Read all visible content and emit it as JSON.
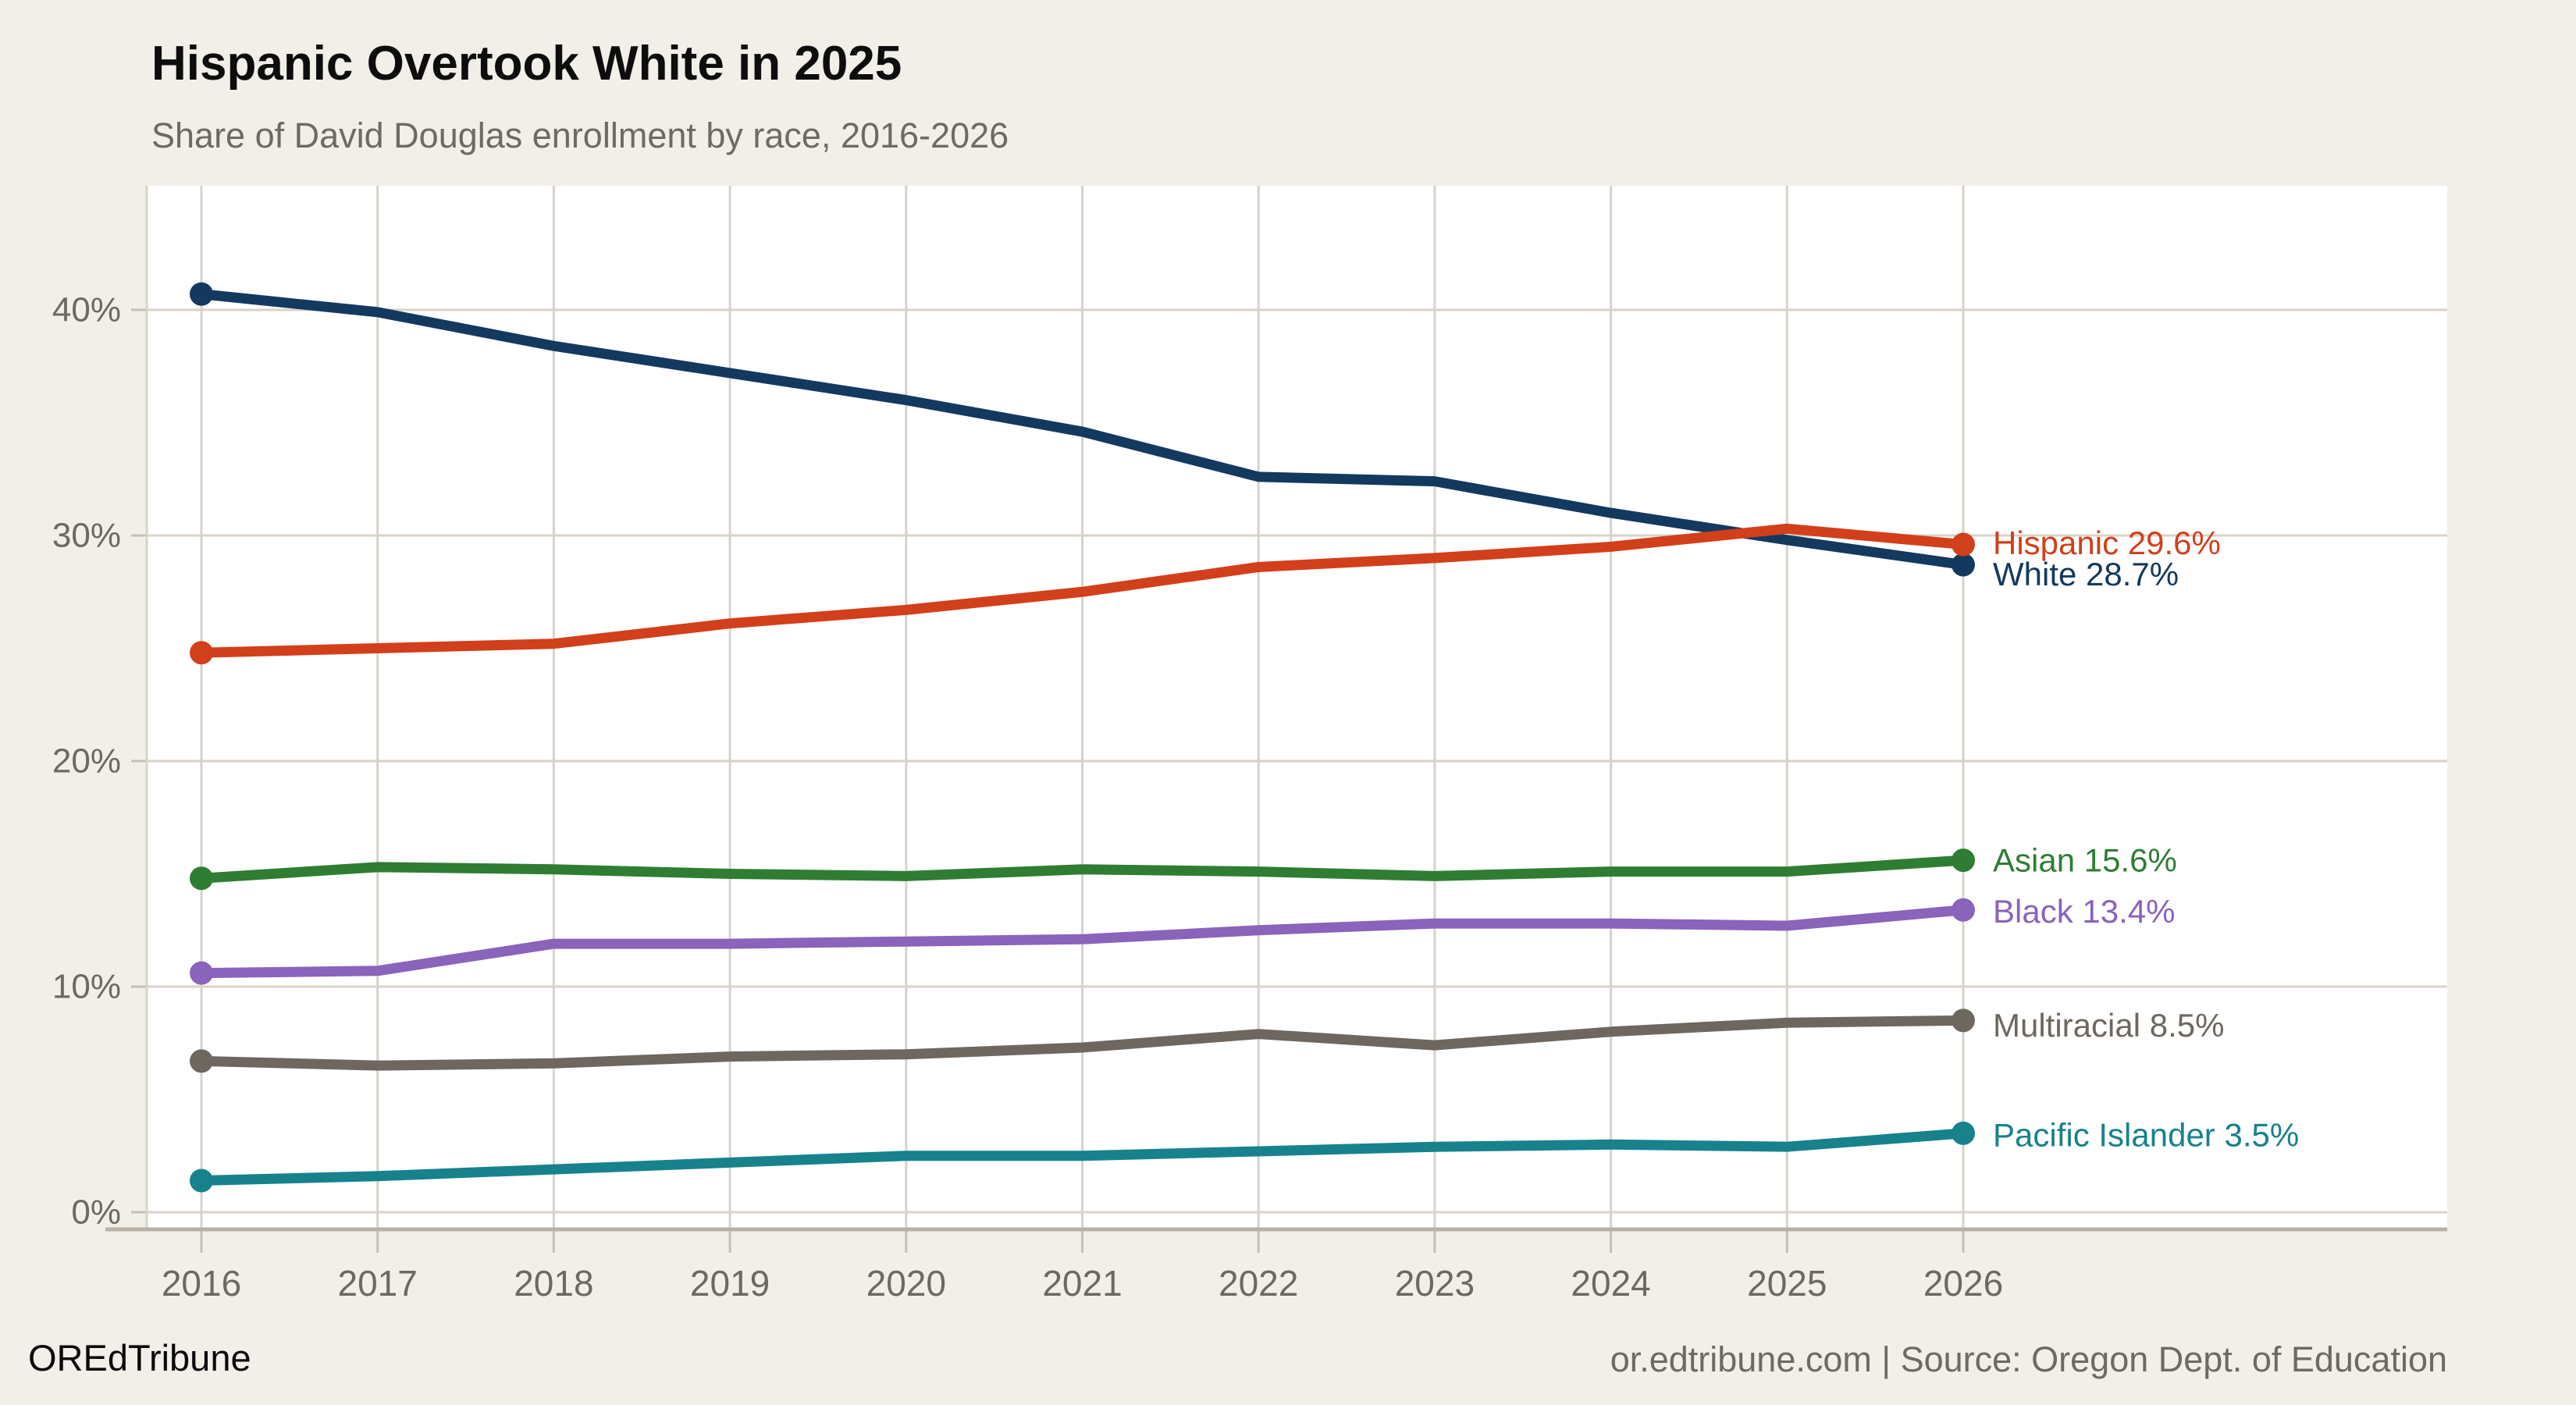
{
  "page": {
    "background": "#f2efe9",
    "plot_background": "#ffffff"
  },
  "header": {
    "title": "Hispanic Overtook White in 2025",
    "subtitle": "Share of David Douglas enrollment by race, 2016-2026"
  },
  "footer": {
    "brand": "OREdTribune",
    "source": "or.edtribune.com | Source: Oregon Dept. of Education"
  },
  "chart_data": {
    "type": "line",
    "title": "Hispanic Overtook White in 2025",
    "subtitle": "Share of David Douglas enrollment by race, 2016-2026",
    "x": [
      2016,
      2017,
      2018,
      2019,
      2020,
      2021,
      2022,
      2023,
      2024,
      2025,
      2026
    ],
    "yticks": [
      0,
      10,
      20,
      30,
      40
    ],
    "y_tick_labels": [
      "0%",
      "10%",
      "20%",
      "30%",
      "40%"
    ],
    "ylim": [
      0,
      45.5
    ],
    "grid": true,
    "legend_position": "end-of-line-labels",
    "grid_color": "#d8d2c8",
    "axis_line_color": "#b7b0a4",
    "tick_color": "#c6c0b4",
    "tick_label_color": "#6d6862",
    "series": [
      {
        "name": "White",
        "color": "#14395f",
        "end_label": "White 28.7%",
        "values": [
          40.7,
          39.9,
          38.4,
          37.2,
          36.0,
          34.6,
          32.6,
          32.4,
          31.0,
          29.8,
          28.7
        ]
      },
      {
        "name": "Hispanic",
        "color": "#d23f1b",
        "end_label": "Hispanic 29.6%",
        "values": [
          24.8,
          25.0,
          25.2,
          26.1,
          26.7,
          27.5,
          28.6,
          29.0,
          29.5,
          30.3,
          29.6
        ]
      },
      {
        "name": "Asian",
        "color": "#2f7d33",
        "end_label": "Asian 15.6%",
        "values": [
          14.8,
          15.3,
          15.2,
          15.0,
          14.9,
          15.2,
          15.1,
          14.9,
          15.1,
          15.1,
          15.6
        ]
      },
      {
        "name": "Black",
        "color": "#8a63ba",
        "end_label": "Black 13.4%",
        "values": [
          10.6,
          10.7,
          11.9,
          11.9,
          12.0,
          12.1,
          12.5,
          12.8,
          12.8,
          12.7,
          13.4
        ]
      },
      {
        "name": "Multiracial",
        "color": "#6e675f",
        "end_label": "Multiracial 8.5%",
        "values": [
          6.7,
          6.5,
          6.6,
          6.9,
          7.0,
          7.3,
          7.9,
          7.4,
          8.0,
          8.4,
          8.5
        ]
      },
      {
        "name": "Pacific Islander",
        "color": "#17828c",
        "end_label": "Pacific Islander 3.5%",
        "values": [
          1.4,
          1.6,
          1.9,
          2.2,
          2.5,
          2.5,
          2.7,
          2.9,
          3.0,
          2.9,
          3.5
        ]
      }
    ]
  }
}
